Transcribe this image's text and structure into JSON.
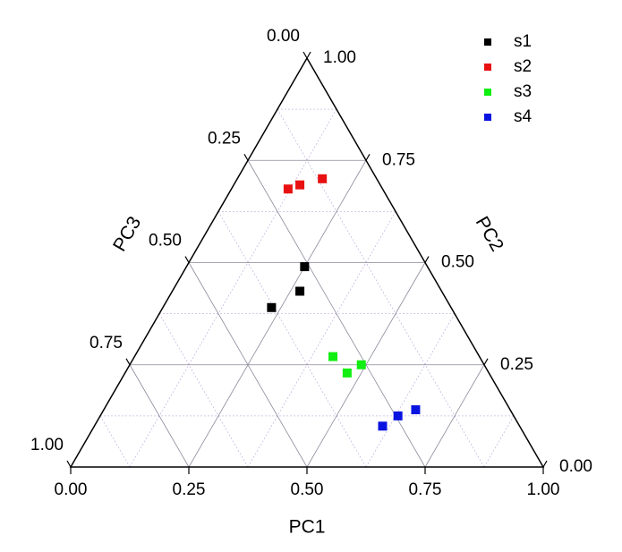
{
  "chart_data": {
    "type": "ternary",
    "axes": {
      "pc1": {
        "title": "PC1",
        "ticks": [
          {
            "value": 0,
            "label": "0.00"
          },
          {
            "value": 0.25,
            "label": "0.25"
          },
          {
            "value": 0.5,
            "label": "0.50"
          },
          {
            "value": 0.75,
            "label": "0.75"
          },
          {
            "value": 1,
            "label": "1.00"
          }
        ]
      },
      "pc2": {
        "title": "PC2",
        "ticks": [
          {
            "value": 0,
            "label": "0.00"
          },
          {
            "value": 0.25,
            "label": "0.25"
          },
          {
            "value": 0.5,
            "label": "0.50"
          },
          {
            "value": 0.75,
            "label": "0.75"
          },
          {
            "value": 1,
            "label": "1.00"
          }
        ]
      },
      "pc3": {
        "title": "PC3",
        "ticks": [
          {
            "value": 0,
            "label": "0.00"
          },
          {
            "value": 0.25,
            "label": "0.25"
          },
          {
            "value": 0.5,
            "label": "0.50"
          },
          {
            "value": 0.75,
            "label": "0.75"
          },
          {
            "value": 1,
            "label": "1.00"
          }
        ]
      }
    },
    "minor_ticks": [
      0.125,
      0.375,
      0.625,
      0.875
    ],
    "grid": true,
    "legend": "top-right",
    "series": [
      {
        "name": "s1",
        "color": "#000000",
        "values": [
          [
            0.25,
            0.49,
            0.26
          ],
          [
            0.27,
            0.43,
            0.3
          ],
          [
            0.23,
            0.39,
            0.38
          ]
        ]
      },
      {
        "name": "s2",
        "color": "#e81010",
        "values": [
          [
            0.12,
            0.68,
            0.2
          ],
          [
            0.14,
            0.69,
            0.17
          ],
          [
            0.18,
            0.705,
            0.115
          ]
        ]
      },
      {
        "name": "s3",
        "color": "#11ee11",
        "values": [
          [
            0.42,
            0.27,
            0.31
          ],
          [
            0.47,
            0.23,
            0.3
          ],
          [
            0.49,
            0.25,
            0.26
          ]
        ]
      },
      {
        "name": "s4",
        "color": "#0a14e0",
        "values": [
          [
            0.61,
            0.1,
            0.29
          ],
          [
            0.63,
            0.125,
            0.245
          ],
          [
            0.66,
            0.14,
            0.2
          ]
        ]
      }
    ]
  }
}
